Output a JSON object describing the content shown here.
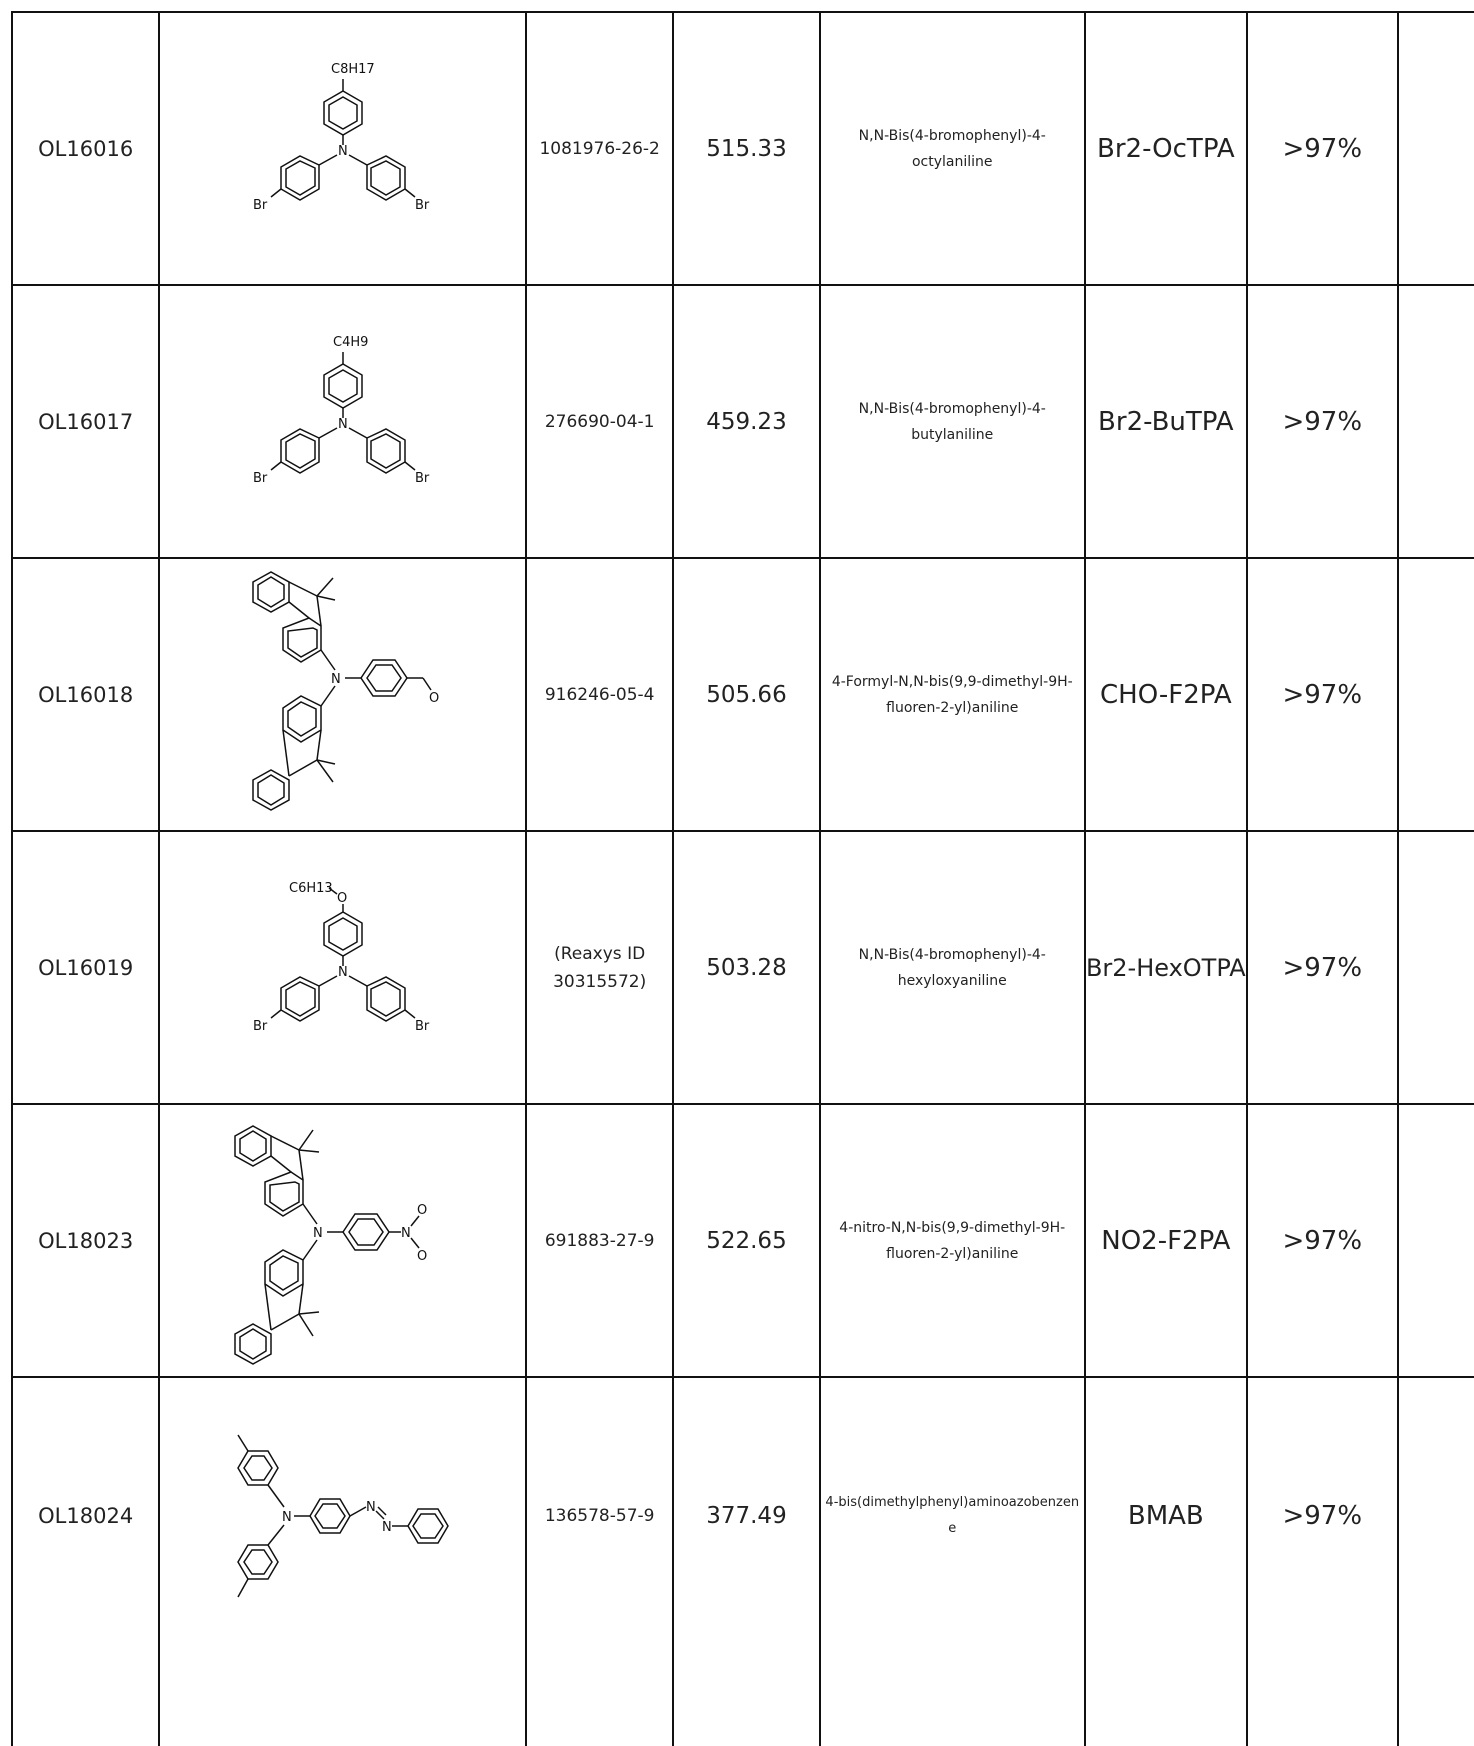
{
  "rows": [
    {
      "code": "OL16016",
      "cas": "1081976-26-2",
      "mw": "515.33",
      "name": "N,N-Bis(4-bromophenyl)-4-octylaniline",
      "abbr": "Br2-OcTPA",
      "purity": ">97%",
      "structure_labels": [
        "C8H17",
        "N",
        "Br",
        "Br"
      ]
    },
    {
      "code": "OL16017",
      "cas": "276690-04-1",
      "mw": "459.23",
      "name": "N,N-Bis(4-bromophenyl)-4-butylaniline",
      "abbr": "Br2-BuTPA",
      "purity": ">97%",
      "structure_labels": [
        "C4H9",
        "N",
        "Br",
        "Br"
      ]
    },
    {
      "code": "OL16018",
      "cas": "916246-05-4",
      "mw": "505.66",
      "name": "4-Formyl-N,N-bis(9,9-dimethyl-9H-fluoren-2-yl)aniline",
      "abbr": "CHO-F2PA",
      "purity": ">97%",
      "structure_labels": [
        "N",
        "O"
      ]
    },
    {
      "code": "OL16019",
      "cas": "(Reaxys ID 30315572)",
      "mw": "503.28",
      "name": "N,N-Bis(4-bromophenyl)-4-hexyloxyaniline",
      "abbr": "Br2-HexOTPA",
      "purity": ">97%",
      "structure_labels": [
        "C6H13",
        "O",
        "N",
        "Br",
        "Br"
      ]
    },
    {
      "code": "OL18023",
      "cas": "691883-27-9",
      "mw": "522.65",
      "name": "4-nitro-N,N-bis(9,9-dimethyl-9H-fluoren-2-yl)aniline",
      "abbr": "NO2-F2PA",
      "purity": ">97%",
      "structure_labels": [
        "N",
        "N",
        "O",
        "O"
      ]
    },
    {
      "code": "OL18024",
      "cas": "136578-57-9",
      "mw": "377.49",
      "name": "4-bis(dimethylphenyl)aminoazobenzene",
      "abbr": "BMAB",
      "purity": ">97%",
      "structure_labels": [
        "N",
        "N",
        "N"
      ]
    }
  ]
}
